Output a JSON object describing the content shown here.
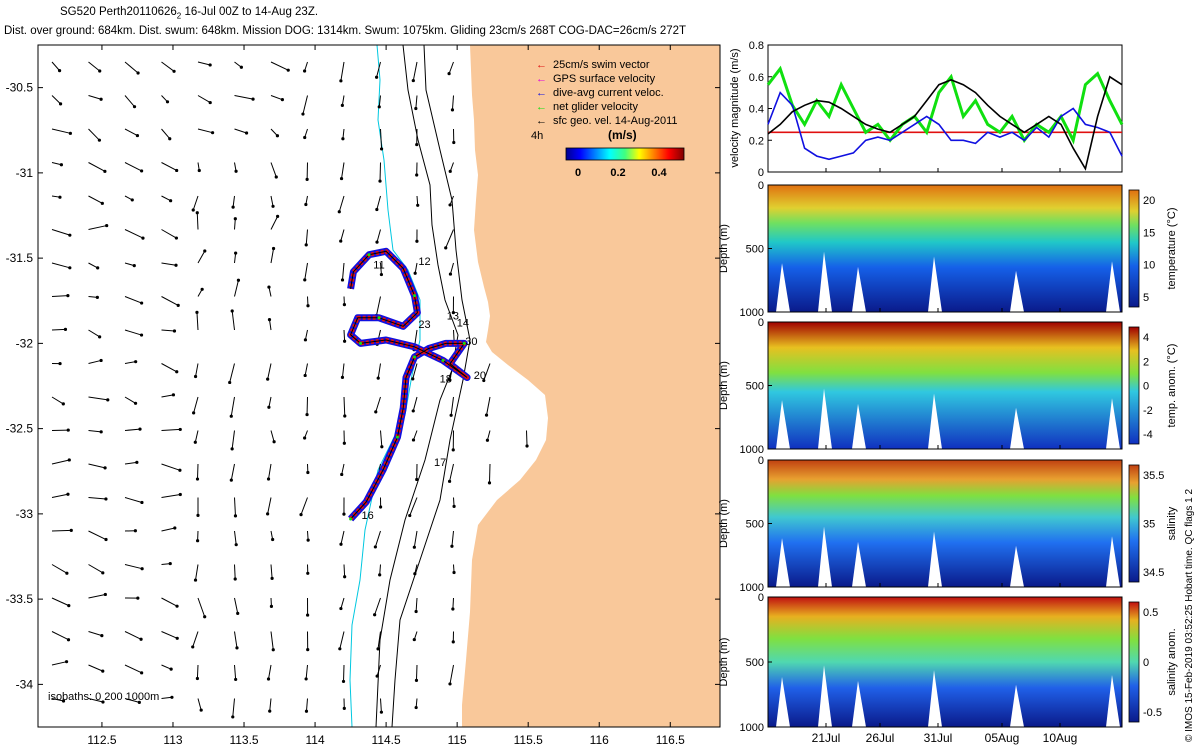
{
  "header": {
    "title_prefix": "SG520 Perth20110626",
    "title_subscript": "2",
    "title_suffix": " 16-Jul 00Z to 14-Aug 23Z.",
    "stats": "Dist. over ground: 684km. Dist. swum: 648km. Mission DOG: 1314km. Swum: 1075km. Gliding 23cm/s 268T COG-DAC=26cm/s 272T"
  },
  "colors": {
    "land": "#F9C89A",
    "swim_vector": "#E01010",
    "gps_velocity": "#E000E0",
    "dac": "#1010E0",
    "net_velocity": "#10E010",
    "geo_velocity": "#000000",
    "coast_isobath_0": "#00C8E0",
    "isobath": "#000000"
  },
  "map": {
    "legend": [
      {
        "label": "25cm/s swim vector",
        "color": "#E01010"
      },
      {
        "label": "GPS surface velocity",
        "color": "#E000E0"
      },
      {
        "label": "dive-avg current veloc.",
        "color": "#1010E0"
      },
      {
        "label": "net glider velocity",
        "color": "#10E010"
      },
      {
        "label": "sfc geo. vel. 14-Aug-2011",
        "color": "#000000"
      }
    ],
    "colorbar_title": "(m/s)",
    "colorbar_ticks": [
      "0",
      "0.2",
      "0.4"
    ],
    "duration_label": "4h",
    "isobaths_label": "isobaths: 0   200  1000m",
    "x_ticks": [
      "112.5",
      "113",
      "113.5",
      "114",
      "114.5",
      "115",
      "115.5",
      "116",
      "116.5"
    ],
    "y_ticks": [
      "-30.5",
      "-31",
      "-31.5",
      "-32",
      "-32.5",
      "-33",
      "-33.5",
      "-34"
    ],
    "day_labels": [
      {
        "text": "11",
        "lon": 114.45,
        "lat": -31.56
      },
      {
        "text": "12",
        "lon": 114.77,
        "lat": -31.54
      },
      {
        "text": "13",
        "lon": 114.97,
        "lat": -31.86
      },
      {
        "text": "14",
        "lon": 115.04,
        "lat": -31.9
      },
      {
        "text": "16",
        "lon": 114.37,
        "lat": -33.03
      },
      {
        "text": "17",
        "lon": 114.88,
        "lat": -32.72
      },
      {
        "text": "18",
        "lon": 114.92,
        "lat": -32.23
      },
      {
        "text": "20",
        "lon": 115.16,
        "lat": -32.21
      },
      {
        "text": "23",
        "lon": 114.77,
        "lat": -31.91
      },
      {
        "text": "30",
        "lon": 115.1,
        "lat": -32.01
      }
    ]
  },
  "right_panels": {
    "time_ticks": [
      "21Jul",
      "26Jul",
      "31Jul",
      "05Aug",
      "10Aug"
    ],
    "depth_label": "Depth (m)",
    "velocity_ylabel": "velocity magnitude (m/s)",
    "panels": [
      {
        "cbar_label": "temperature (°C)",
        "ticks": [
          "20",
          "15",
          "10",
          "5"
        ]
      },
      {
        "cbar_label": "temp. anom. (°C)",
        "ticks": [
          "4",
          "2",
          "0",
          "-2",
          "-4"
        ]
      },
      {
        "cbar_label": "salinity",
        "ticks": [
          "35.5",
          "35",
          "34.5"
        ]
      },
      {
        "cbar_label": "salinity anom.",
        "ticks": [
          "0.5",
          "0",
          "-0.5"
        ]
      }
    ],
    "footer_note": "© IMOS 15-Feb-2019 03:52:25 Hobart time. QC flags 1 2"
  },
  "chart_data": [
    {
      "type": "scatter",
      "title": "SG520 Perth20110626 16-Jul 00Z to 14-Aug 23Z.",
      "xlim": [
        112.05,
        116.85
      ],
      "ylim": [
        -34.25,
        -30.25
      ],
      "x_ticks": [
        112.5,
        113,
        113.5,
        114,
        114.5,
        115,
        115.5,
        116,
        116.5
      ],
      "y_ticks": [
        -30.5,
        -31,
        -31.5,
        -32,
        -32.5,
        -33,
        -33.5,
        -34
      ],
      "glider_track": [
        [
          114.25,
          -33.03
        ],
        [
          114.36,
          -32.93
        ],
        [
          114.48,
          -32.74
        ],
        [
          114.58,
          -32.55
        ],
        [
          114.62,
          -32.38
        ],
        [
          114.64,
          -32.2
        ],
        [
          114.7,
          -32.08
        ],
        [
          114.8,
          -32.03
        ],
        [
          114.92,
          -32.0
        ],
        [
          115.05,
          -32.0
        ],
        [
          114.95,
          -32.12
        ],
        [
          115.07,
          -32.2
        ],
        [
          114.9,
          -32.1
        ],
        [
          114.7,
          -32.02
        ],
        [
          114.5,
          -31.98
        ],
        [
          114.32,
          -32.0
        ],
        [
          114.25,
          -31.95
        ],
        [
          114.3,
          -31.85
        ],
        [
          114.45,
          -31.85
        ],
        [
          114.62,
          -31.9
        ],
        [
          114.72,
          -31.82
        ],
        [
          114.7,
          -31.72
        ],
        [
          114.62,
          -31.56
        ],
        [
          114.5,
          -31.46
        ],
        [
          114.38,
          -31.48
        ],
        [
          114.27,
          -31.58
        ],
        [
          114.25,
          -31.68
        ]
      ],
      "current_vectors": {
        "lon_range": [
          112.15,
          116.2
        ],
        "lat_range": [
          -34.2,
          -30.35
        ],
        "typical_speed_m_s": 0.1
      }
    },
    {
      "type": "line",
      "ylabel": "velocity magnitude (m/s)",
      "ylim": [
        0,
        0.8
      ],
      "y_ticks": [
        0,
        0.2,
        0.4,
        0.6,
        0.8
      ],
      "x_ticks": [
        "21Jul",
        "26Jul",
        "31Jul",
        "05Aug",
        "10Aug"
      ],
      "series": [
        {
          "color": "#E01010",
          "values": [
            0.25,
            0.25,
            0.25,
            0.25,
            0.25,
            0.25,
            0.25,
            0.25,
            0.25,
            0.25,
            0.25,
            0.25,
            0.25,
            0.25,
            0.25,
            0.25,
            0.25,
            0.25,
            0.25,
            0.25,
            0.25,
            0.25,
            0.25,
            0.25,
            0.25,
            0.25,
            0.25,
            0.25,
            0.25,
            0.25
          ]
        },
        {
          "color": "#10E010",
          "values": [
            0.55,
            0.65,
            0.42,
            0.3,
            0.45,
            0.35,
            0.55,
            0.4,
            0.25,
            0.3,
            0.2,
            0.3,
            0.35,
            0.25,
            0.5,
            0.6,
            0.35,
            0.45,
            0.3,
            0.25,
            0.35,
            0.2,
            0.3,
            0.25,
            0.35,
            0.2,
            0.55,
            0.62,
            0.45,
            0.3
          ]
        },
        {
          "color": "#1010E0",
          "values": [
            0.3,
            0.5,
            0.42,
            0.15,
            0.1,
            0.08,
            0.1,
            0.12,
            0.2,
            0.22,
            0.2,
            0.25,
            0.3,
            0.35,
            0.3,
            0.2,
            0.2,
            0.18,
            0.25,
            0.22,
            0.25,
            0.2,
            0.28,
            0.22,
            0.35,
            0.4,
            0.3,
            0.28,
            0.25,
            0.1
          ]
        },
        {
          "color": "#000000",
          "values": [
            0.24,
            0.3,
            0.38,
            0.42,
            0.45,
            0.44,
            0.4,
            0.35,
            0.3,
            0.27,
            0.25,
            0.3,
            0.35,
            0.45,
            0.55,
            0.58,
            0.55,
            0.5,
            0.42,
            0.35,
            0.3,
            0.25,
            0.3,
            0.35,
            0.3,
            0.15,
            0.02,
            0.35,
            0.6,
            0.55
          ]
        }
      ]
    },
    {
      "type": "heatmap",
      "ylabel": "Depth (m)",
      "ylim": [
        1000,
        0
      ],
      "y_ticks": [
        0,
        500,
        1000
      ],
      "cbar_label": "temperature (°C)",
      "clim": [
        3,
        22
      ],
      "cbar_ticks": [
        5,
        10,
        15,
        20
      ]
    },
    {
      "type": "heatmap",
      "ylabel": "Depth (m)",
      "ylim": [
        1000,
        0
      ],
      "y_ticks": [
        0,
        500,
        1000
      ],
      "cbar_label": "temp. anom. (°C)",
      "clim": [
        -4,
        4
      ],
      "cbar_ticks": [
        -4,
        -2,
        0,
        2,
        4
      ]
    },
    {
      "type": "heatmap",
      "ylabel": "Depth (m)",
      "ylim": [
        1000,
        0
      ],
      "y_ticks": [
        0,
        500,
        1000
      ],
      "cbar_label": "salinity",
      "clim": [
        34.3,
        35.8
      ],
      "cbar_ticks": [
        34.5,
        35,
        35.5
      ]
    },
    {
      "type": "heatmap",
      "ylabel": "Depth (m)",
      "ylim": [
        1000,
        0
      ],
      "y_ticks": [
        0,
        500,
        1000
      ],
      "cbar_label": "salinity anom.",
      "clim": [
        -0.5,
        0.5
      ],
      "cbar_ticks": [
        -0.5,
        0,
        0.5
      ]
    }
  ]
}
